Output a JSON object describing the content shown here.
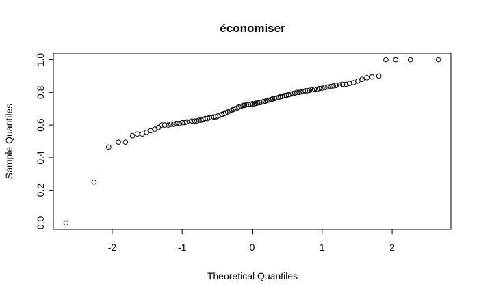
{
  "chart_data": {
    "type": "scatter",
    "title": "économiser",
    "xlabel": "Theoretical Quantiles",
    "ylabel": "Sample Quantiles",
    "xlim": [
      -2.84,
      2.84
    ],
    "ylim": [
      -0.04,
      1.04
    ],
    "x_ticks": [
      -2,
      -1,
      0,
      1,
      2
    ],
    "x_tick_labels": [
      "-2",
      "-1",
      "0",
      "1",
      "2"
    ],
    "y_ticks": [
      0.0,
      0.2,
      0.4,
      0.6,
      0.8,
      1.0
    ],
    "y_tick_labels": [
      "0.0",
      "0.2",
      "0.4",
      "0.6",
      "0.8",
      "1.0"
    ],
    "grid": false,
    "marker": "open-circle",
    "point_color": "#000000",
    "series": [
      {
        "name": "",
        "points": [
          [
            -2.66,
            0.0
          ],
          [
            -2.26,
            0.25
          ],
          [
            -2.05,
            0.465
          ],
          [
            -1.91,
            0.495
          ],
          [
            -1.81,
            0.495
          ],
          [
            -1.71,
            0.535
          ],
          [
            -1.64,
            0.545
          ],
          [
            -1.57,
            0.545
          ],
          [
            -1.51,
            0.555
          ],
          [
            -1.45,
            0.565
          ],
          [
            -1.39,
            0.575
          ],
          [
            -1.34,
            0.585
          ],
          [
            -1.29,
            0.6
          ],
          [
            -1.25,
            0.6
          ],
          [
            -1.2,
            0.6
          ],
          [
            -1.16,
            0.605
          ],
          [
            -1.12,
            0.605
          ],
          [
            -1.08,
            0.61
          ],
          [
            -1.04,
            0.61
          ],
          [
            -1.0,
            0.615
          ],
          [
            -0.96,
            0.615
          ],
          [
            -0.93,
            0.62
          ],
          [
            -0.89,
            0.62
          ],
          [
            -0.86,
            0.625
          ],
          [
            -0.82,
            0.625
          ],
          [
            -0.79,
            0.625
          ],
          [
            -0.76,
            0.63
          ],
          [
            -0.73,
            0.63
          ],
          [
            -0.7,
            0.635
          ],
          [
            -0.67,
            0.64
          ],
          [
            -0.64,
            0.64
          ],
          [
            -0.61,
            0.645
          ],
          [
            -0.58,
            0.645
          ],
          [
            -0.55,
            0.65
          ],
          [
            -0.52,
            0.65
          ],
          [
            -0.49,
            0.655
          ],
          [
            -0.46,
            0.66
          ],
          [
            -0.43,
            0.665
          ],
          [
            -0.4,
            0.67
          ],
          [
            -0.38,
            0.675
          ],
          [
            -0.35,
            0.68
          ],
          [
            -0.32,
            0.685
          ],
          [
            -0.29,
            0.69
          ],
          [
            -0.27,
            0.695
          ],
          [
            -0.24,
            0.7
          ],
          [
            -0.21,
            0.705
          ],
          [
            -0.19,
            0.71
          ],
          [
            -0.16,
            0.715
          ],
          [
            -0.13,
            0.72
          ],
          [
            -0.11,
            0.72
          ],
          [
            -0.08,
            0.725
          ],
          [
            -0.05,
            0.725
          ],
          [
            -0.03,
            0.728
          ],
          [
            0.0,
            0.73
          ],
          [
            0.03,
            0.73
          ],
          [
            0.05,
            0.733
          ],
          [
            0.08,
            0.735
          ],
          [
            0.11,
            0.738
          ],
          [
            0.13,
            0.74
          ],
          [
            0.16,
            0.743
          ],
          [
            0.19,
            0.746
          ],
          [
            0.21,
            0.75
          ],
          [
            0.24,
            0.753
          ],
          [
            0.27,
            0.756
          ],
          [
            0.29,
            0.76
          ],
          [
            0.32,
            0.763
          ],
          [
            0.35,
            0.766
          ],
          [
            0.38,
            0.77
          ],
          [
            0.4,
            0.773
          ],
          [
            0.43,
            0.776
          ],
          [
            0.46,
            0.78
          ],
          [
            0.49,
            0.783
          ],
          [
            0.52,
            0.786
          ],
          [
            0.55,
            0.79
          ],
          [
            0.58,
            0.793
          ],
          [
            0.61,
            0.796
          ],
          [
            0.64,
            0.8
          ],
          [
            0.67,
            0.8
          ],
          [
            0.7,
            0.803
          ],
          [
            0.73,
            0.806
          ],
          [
            0.76,
            0.81
          ],
          [
            0.79,
            0.81
          ],
          [
            0.82,
            0.813
          ],
          [
            0.86,
            0.816
          ],
          [
            0.89,
            0.82
          ],
          [
            0.93,
            0.82
          ],
          [
            0.96,
            0.823
          ],
          [
            1.0,
            0.826
          ],
          [
            1.04,
            0.83
          ],
          [
            1.08,
            0.833
          ],
          [
            1.12,
            0.836
          ],
          [
            1.16,
            0.84
          ],
          [
            1.2,
            0.843
          ],
          [
            1.25,
            0.846
          ],
          [
            1.29,
            0.85
          ],
          [
            1.34,
            0.85
          ],
          [
            1.39,
            0.855
          ],
          [
            1.45,
            0.86
          ],
          [
            1.51,
            0.87
          ],
          [
            1.57,
            0.88
          ],
          [
            1.64,
            0.89
          ],
          [
            1.71,
            0.895
          ],
          [
            1.81,
            0.9
          ],
          [
            1.91,
            1.0
          ],
          [
            2.05,
            1.0
          ],
          [
            2.26,
            1.0
          ],
          [
            2.66,
            1.0
          ]
        ]
      }
    ]
  }
}
